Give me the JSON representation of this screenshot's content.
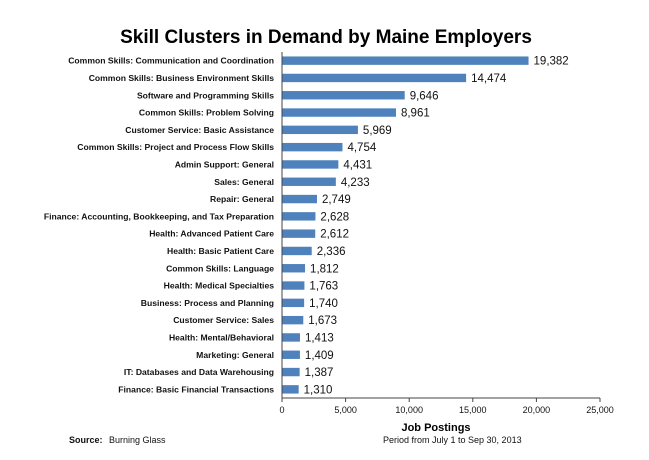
{
  "chart_data": {
    "type": "bar",
    "orientation": "horizontal",
    "title": "Skill Clusters in Demand by Maine Employers",
    "xlabel": "Job Postings",
    "xlim": [
      0,
      25000
    ],
    "xticks": [
      "0",
      "5,000",
      "10,000",
      "15,000",
      "20,000",
      "25,000"
    ],
    "bar_color": "#4f81bd",
    "grid": false,
    "categories": [
      "Common Skills: Communication and Coordination",
      "Common Skills: Business Environment Skills",
      "Software and Programming Skills",
      "Common Skills: Problem Solving",
      "Customer Service: Basic Assistance",
      "Common Skills: Project and Process Flow Skills",
      "Admin Support: General",
      "Sales: General",
      "Repair: General",
      "Finance: Accounting, Bookkeeping, and Tax Preparation",
      "Health: Advanced Patient Care",
      "Health: Basic Patient Care",
      "Common Skills: Language",
      "Health: Medical Specialties",
      "Business: Process and Planning",
      "Customer Service: Sales",
      "Health: Mental/Behavioral",
      "Marketing: General",
      "IT: Databases and Data Warehousing",
      "Finance: Basic Financial Transactions"
    ],
    "values": [
      19382,
      14474,
      9646,
      8961,
      5969,
      4754,
      4431,
      4233,
      2749,
      2628,
      2612,
      2336,
      1812,
      1763,
      1740,
      1673,
      1413,
      1409,
      1387,
      1310
    ],
    "value_labels": [
      "19,382",
      "14,474",
      "9,646",
      "8,961",
      "5,969",
      "4,754",
      "4,431",
      "4,233",
      "2,749",
      "2,628",
      "2,612",
      "2,336",
      "1,812",
      "1,763",
      "1,740",
      "1,673",
      "1,413",
      "1,409",
      "1,387",
      "1,310"
    ]
  },
  "footer": {
    "source_label": "Source:",
    "source_value": "Burning Glass",
    "period": "Period from July 1 to Sep 30, 2013"
  }
}
